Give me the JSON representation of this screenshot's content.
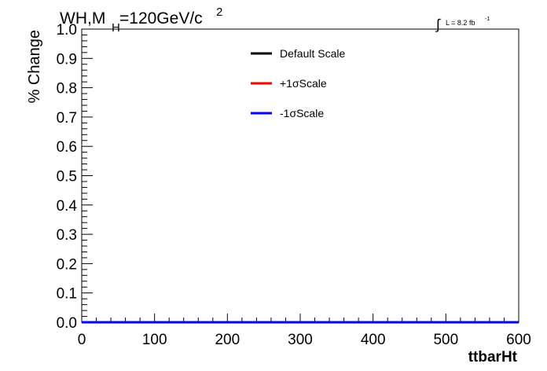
{
  "header": {
    "title_main": "WH,M",
    "title_sub": "H",
    "title_value": "=120GeV/c",
    "title_sup": "2",
    "lumi_integral": "∫",
    "lumi_text": "L = 8.2 fb",
    "lumi_sup": "-1"
  },
  "chart_data": {
    "type": "line",
    "xlabel": "ttbarHt",
    "ylabel": "% Change",
    "xlim": [
      0,
      600
    ],
    "ylim": [
      0.0,
      1.0
    ],
    "xticks": [
      "0",
      "100",
      "200",
      "300",
      "400",
      "500",
      "600"
    ],
    "yticks": [
      "0.0",
      "0.1",
      "0.2",
      "0.3",
      "0.4",
      "0.5",
      "0.6",
      "0.7",
      "0.8",
      "0.9",
      "1.0"
    ],
    "grid": false,
    "legend_position": "top-center",
    "series": [
      {
        "name": "Default Scale",
        "color": "#000000",
        "x": [
          0,
          600
        ],
        "y": [
          0,
          0
        ]
      },
      {
        "name": "+1σScale",
        "color": "#ff0000",
        "x": [
          0,
          600
        ],
        "y": [
          0,
          0
        ]
      },
      {
        "name": "-1σScale",
        "color": "#0000ff",
        "x": [
          0,
          600
        ],
        "y": [
          0,
          0
        ]
      }
    ]
  }
}
